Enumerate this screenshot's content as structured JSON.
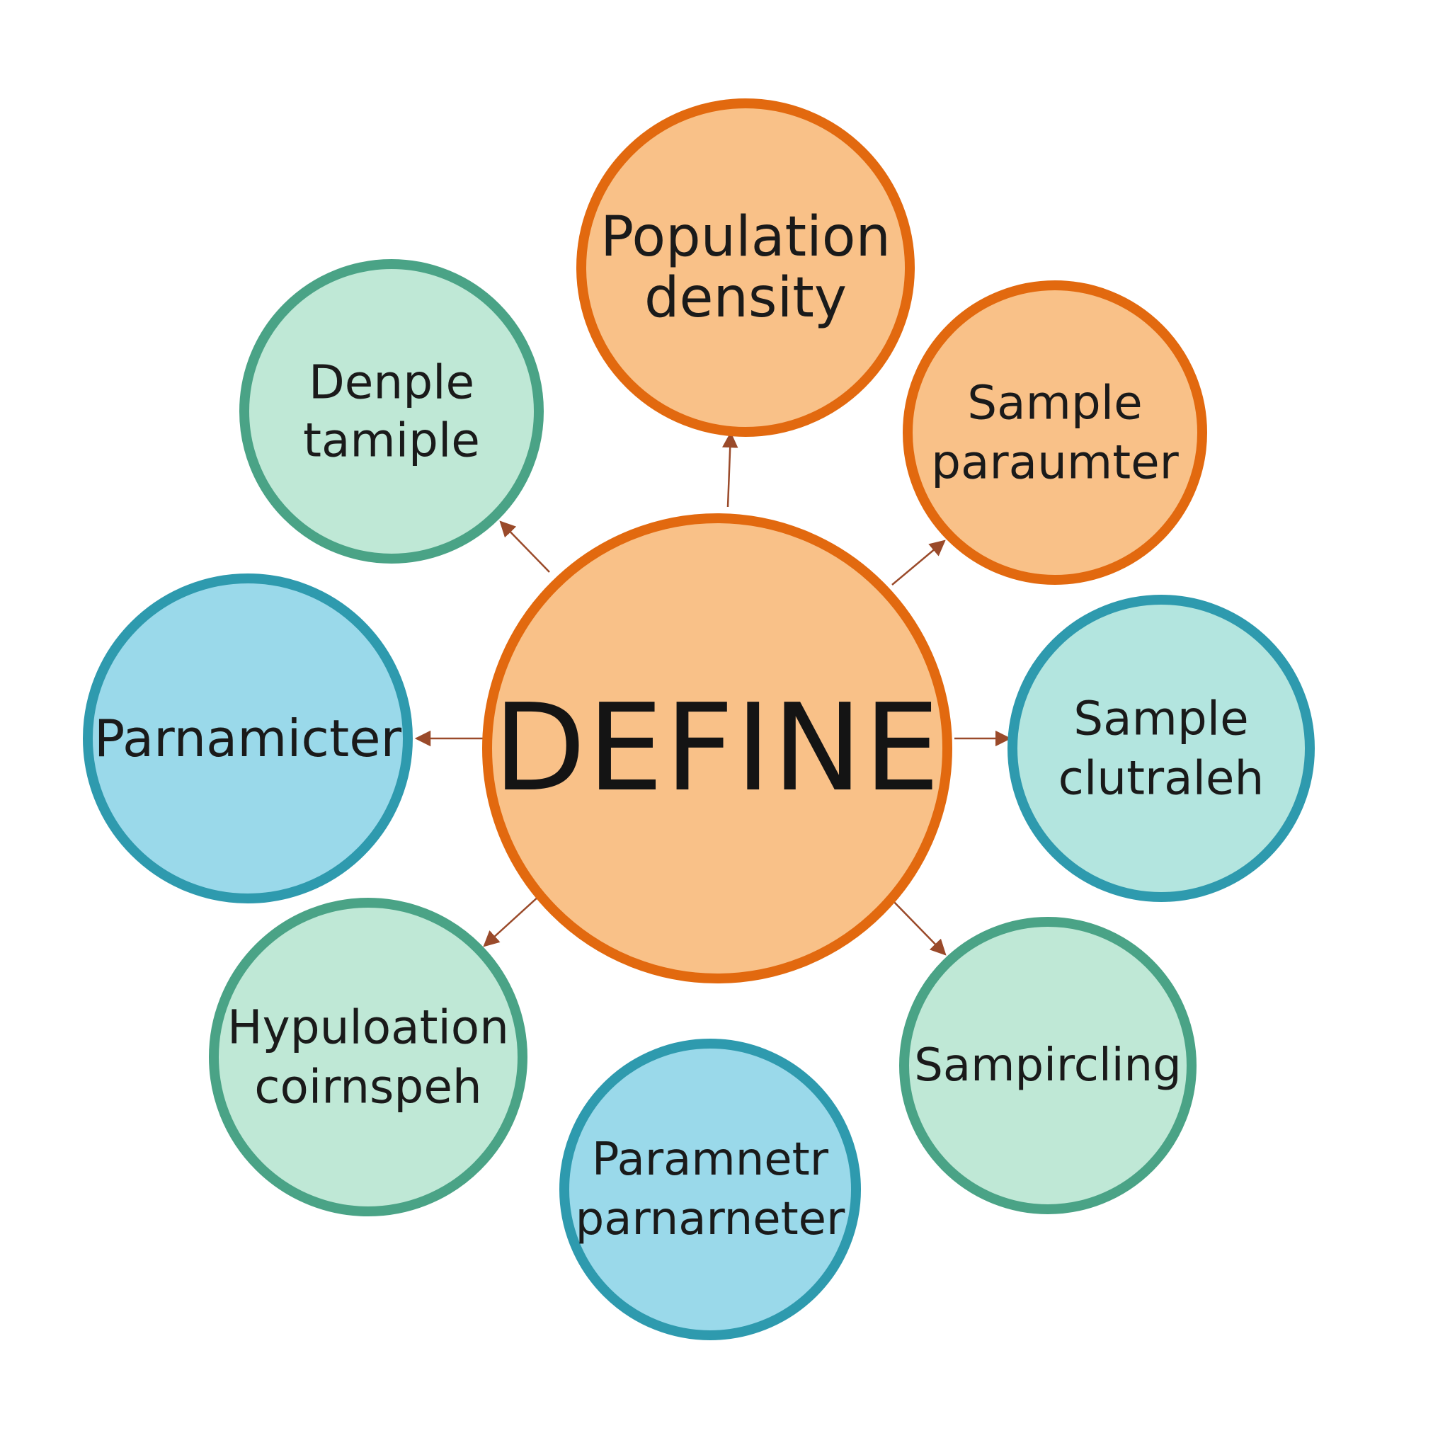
{
  "colors": {
    "arrow": "#9a4a2a",
    "orange_fill": "#f9c188",
    "orange_stroke": "#e2690f",
    "green_fill": "#bfe8d6",
    "green_stroke": "#4aa386",
    "blue_fill": "#9ad9ea",
    "blue_stroke": "#2e9aae",
    "teal_fill": "#b3e5df",
    "teal_stroke": "#2e9aae"
  },
  "center": {
    "label": "DEFINE"
  },
  "nodes": [
    {
      "id": "population-density",
      "lines": [
        "Population",
        "density"
      ],
      "theme": "orange"
    },
    {
      "id": "denple-tamiple",
      "lines": [
        "Denple",
        "tamiple"
      ],
      "theme": "green"
    },
    {
      "id": "sample-paraumter",
      "lines": [
        "Sample",
        "paraumter"
      ],
      "theme": "orange"
    },
    {
      "id": "parnamicter",
      "lines": [
        "Parnamicter"
      ],
      "theme": "blue"
    },
    {
      "id": "sample-clutraleh",
      "lines": [
        "Sample",
        "clutraleh"
      ],
      "theme": "teal"
    },
    {
      "id": "hypuloation-coirnspeh",
      "lines": [
        "Hypuloation",
        "coirnspeh"
      ],
      "theme": "green"
    },
    {
      "id": "paramnetr-parnarneter",
      "lines": [
        "Paramnetr",
        "parnarneter"
      ],
      "theme": "blue"
    },
    {
      "id": "sampircling",
      "lines": [
        "Sampircling"
      ],
      "theme": "green"
    }
  ]
}
